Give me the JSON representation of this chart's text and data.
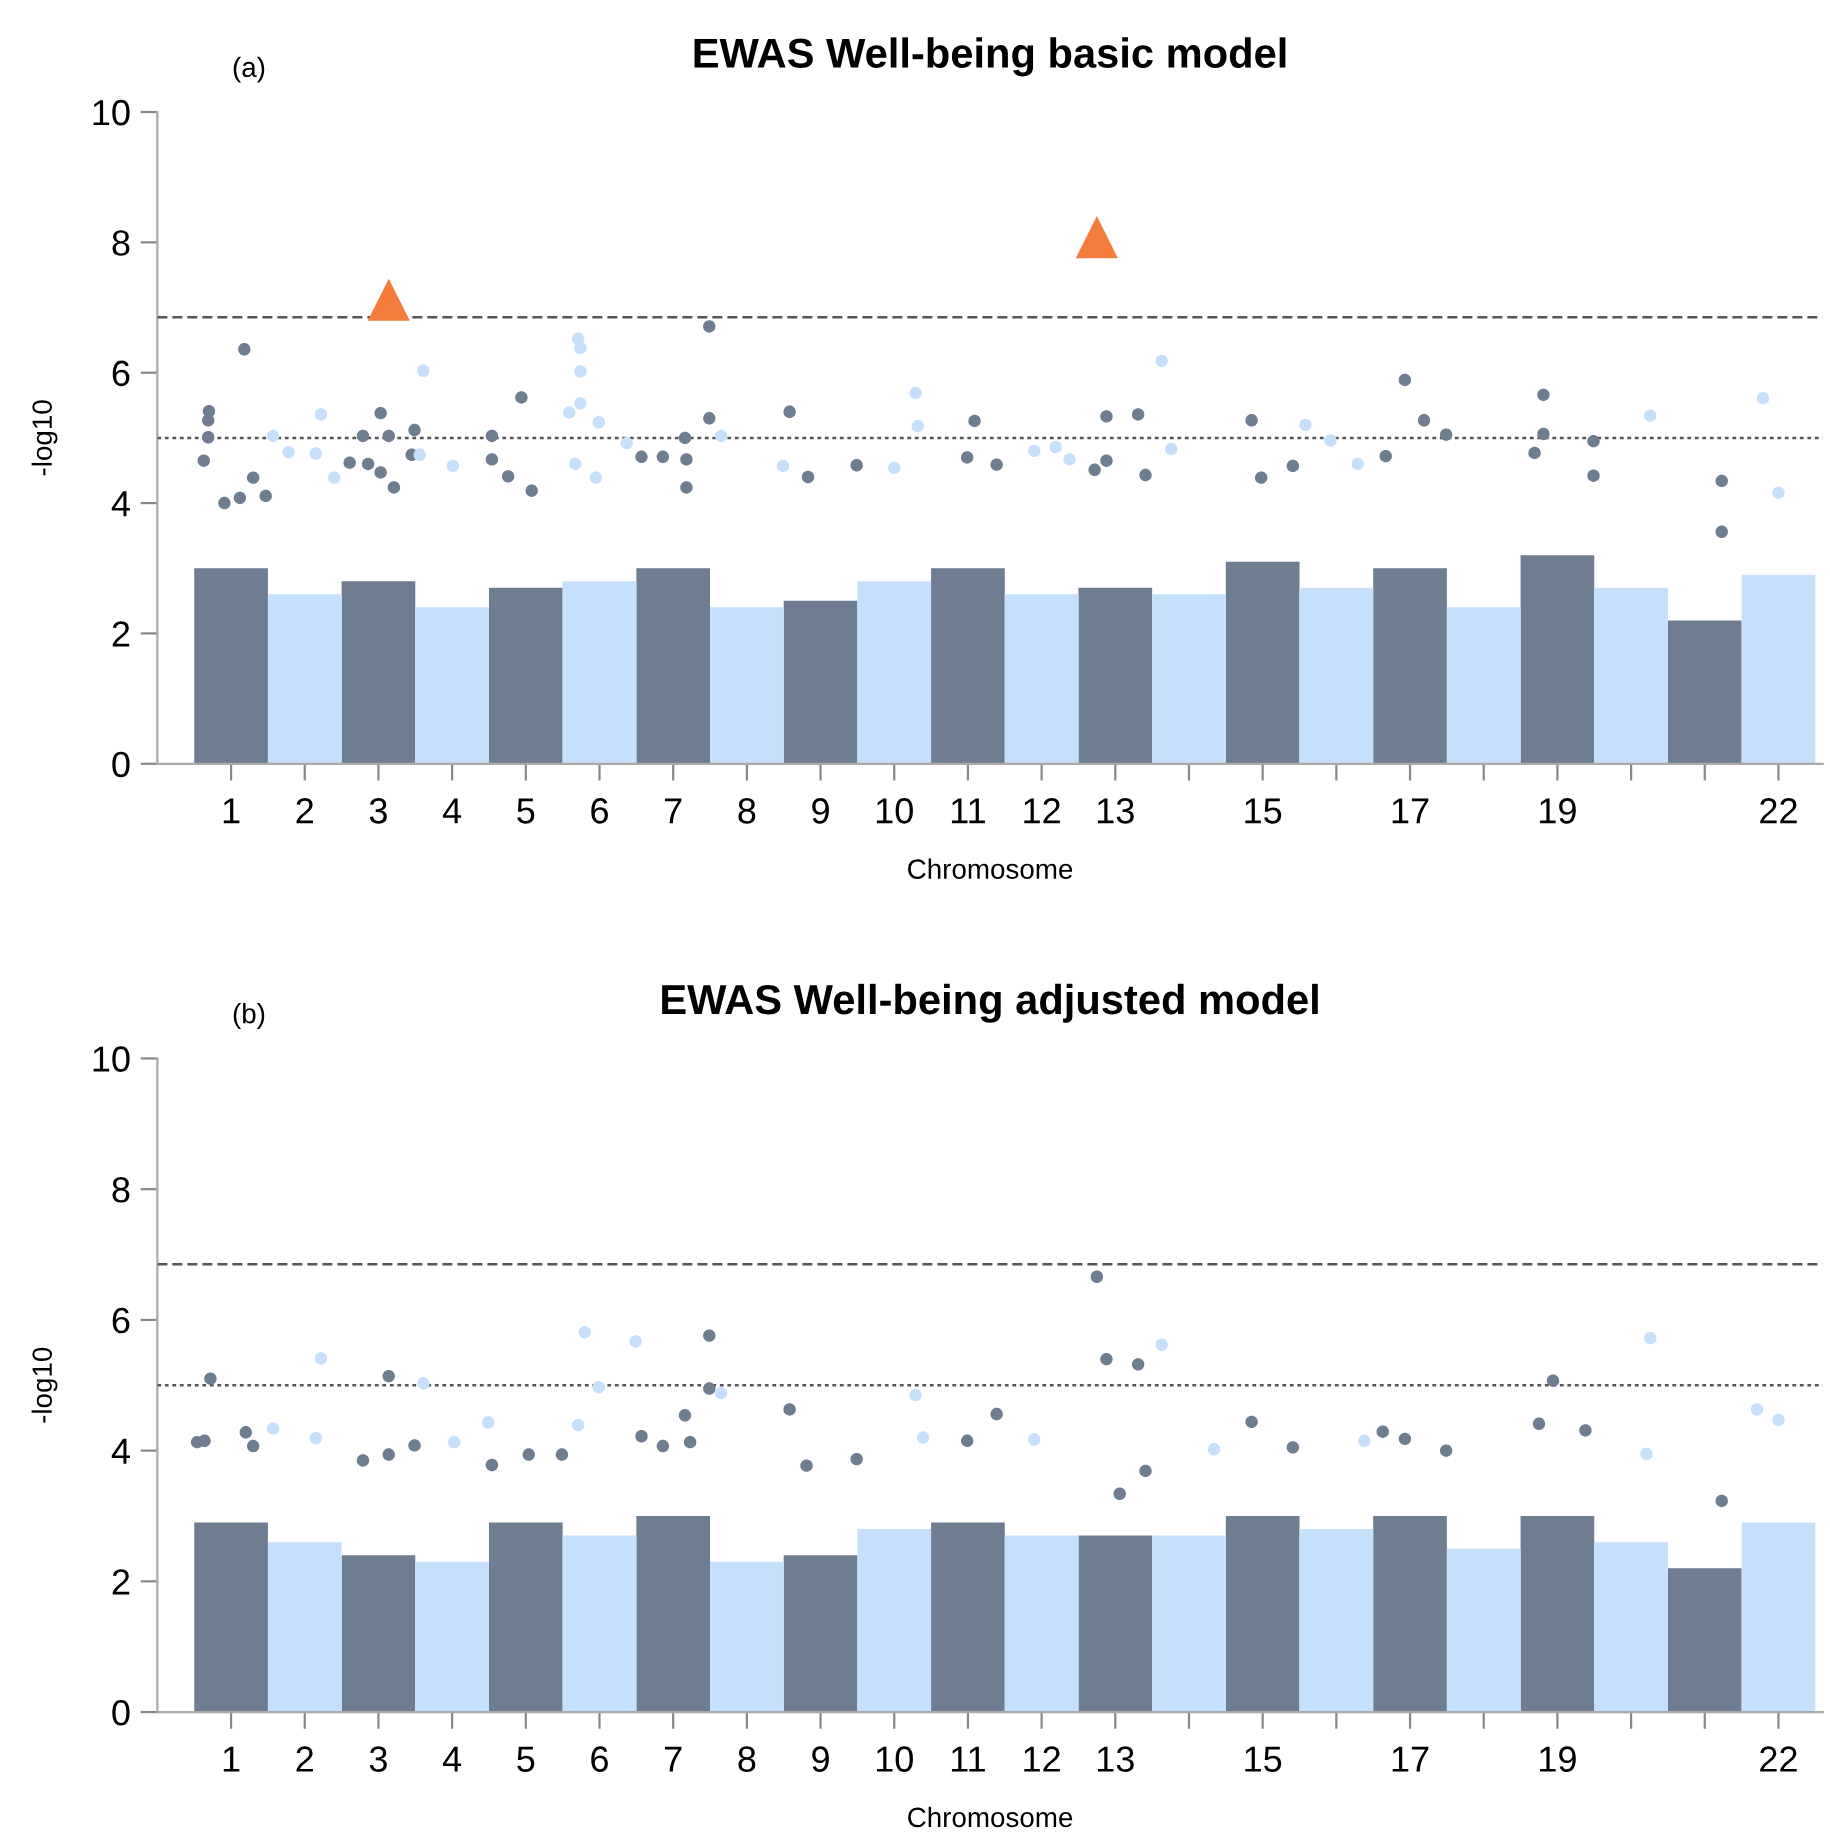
{
  "chart_data": [
    {
      "type": "scatter",
      "title": "EWAS Well-being basic model",
      "xlabel": "Chromosome",
      "ylabel": "-log10",
      "annotations": [
        "(a)"
      ],
      "xlim": [
        0,
        22.6
      ],
      "xticks": [
        1,
        2,
        3,
        4,
        5,
        6,
        7,
        8,
        9,
        10,
        11,
        12,
        13,
        {
          "value": 14,
          "label": null
        },
        15,
        {
          "value": 16,
          "label": null
        },
        17,
        {
          "value": 18,
          "label": null
        },
        19,
        {
          "value": 20,
          "label": null
        },
        {
          "value": 21,
          "label": null
        },
        22
      ],
      "ylim": [
        0,
        10
      ],
      "yticks": [
        0,
        2,
        4,
        6,
        8,
        10
      ],
      "grid": false,
      "legend": false,
      "ref_lines": [
        {
          "axis": "y",
          "value": 6.85,
          "label": null,
          "color": "#555555",
          "line_style": "dashed"
        },
        {
          "axis": "y",
          "value": 5.0,
          "label": null,
          "color": "#555555",
          "line_style": "dotted"
        }
      ],
      "series": [
        {
          "type": "area",
          "color": "#6e7d8f",
          "x": [
            0.5,
            1.5,
            2,
            2.5,
            3.5,
            4,
            4.5,
            5.5,
            6,
            6.5,
            7.5,
            8,
            8.5,
            9.5,
            10,
            10.5,
            11.5,
            12,
            12.5,
            13.5,
            14,
            14.5,
            15.5,
            16,
            16.5,
            17.5,
            18,
            18.5,
            19.5,
            20,
            20.5,
            21.5
          ],
          "values": [
            3.0,
            3.0,
            null,
            2.8,
            2.8,
            null,
            2.7,
            2.7,
            null,
            3.0,
            3.0,
            null,
            2.5,
            2.5,
            null,
            3.0,
            3.0,
            null,
            2.7,
            2.7,
            null,
            3.1,
            3.1,
            null,
            3.0,
            3.0,
            null,
            3.2,
            3.2,
            null,
            2.2,
            2.2
          ]
        },
        {
          "type": "area",
          "color": "#c6e0fb",
          "x": [
            1.5,
            2.5,
            3,
            3.5,
            4.5,
            5,
            5.5,
            6.5,
            7,
            7.5,
            8.5,
            9,
            9.5,
            10.5,
            11,
            11.5,
            12.5,
            13,
            13.5,
            14.5,
            15,
            15.5,
            16.5,
            17,
            17.5,
            18.5,
            19,
            19.5,
            20.5,
            21,
            21.5,
            22.5
          ],
          "values": [
            2.6,
            2.6,
            null,
            2.4,
            2.4,
            null,
            2.8,
            2.8,
            null,
            2.4,
            2.4,
            null,
            2.8,
            2.8,
            null,
            2.6,
            2.6,
            null,
            2.6,
            2.6,
            null,
            2.7,
            2.7,
            null,
            2.4,
            2.4,
            null,
            2.7,
            2.7,
            null,
            2.9,
            2.9
          ]
        },
        {
          "type": "scatter",
          "color": "#6e7d8f",
          "marker": "circle",
          "x": [
            0.7,
            0.69,
            0.69,
            0.63,
            1.18,
            0.91,
            1.3,
            1.12,
            1.47,
            3.03,
            2.79,
            3.14,
            3.49,
            2.86,
            3.03,
            3.21,
            3.45,
            2.61,
            4.94,
            4.54,
            4.54,
            4.76,
            5.08,
            6.57,
            6.86,
            7.49,
            7.49,
            7.16,
            7.18,
            7.18,
            8.58,
            8.83,
            9.49,
            10.99,
            11.09,
            11.39,
            12.88,
            13.31,
            12.72,
            12.88,
            13.41,
            14.85,
            14.98,
            15.41,
            16.93,
            17.19,
            17.49,
            16.67,
            18.81,
            18.81,
            18.69,
            19.49,
            19.49,
            21.23,
            21.23
          ],
          "values": [
            5.41,
            5.27,
            5.01,
            4.65,
            6.36,
            4.0,
            4.39,
            4.08,
            4.11,
            5.38,
            5.03,
            5.03,
            5.12,
            4.6,
            4.47,
            4.24,
            4.74,
            4.62,
            5.62,
            5.03,
            4.67,
            4.41,
            4.19,
            4.71,
            4.71,
            6.71,
            5.3,
            5.0,
            4.67,
            4.24,
            5.4,
            4.4,
            4.58,
            4.7,
            5.26,
            4.59,
            5.33,
            5.36,
            4.51,
            4.65,
            4.43,
            5.27,
            4.39,
            4.57,
            5.89,
            5.27,
            5.05,
            4.72,
            5.66,
            5.06,
            4.77,
            4.95,
            4.42,
            4.34,
            3.56
          ]
        },
        {
          "type": "scatter",
          "color": "#c6e0fb",
          "marker": "circle",
          "x": [
            1.57,
            2.22,
            1.78,
            2.15,
            2.4,
            3.61,
            3.56,
            4.01,
            5.71,
            5.74,
            5.74,
            5.74,
            5.59,
            5.99,
            6.37,
            5.67,
            5.95,
            7.65,
            8.49,
            10.29,
            10.32,
            10.0,
            11.9,
            12.19,
            12.38,
            13.63,
            13.76,
            15.58,
            15.92,
            20.26,
            21.79,
            22.0,
            16.29
          ],
          "values": [
            5.03,
            5.36,
            4.78,
            4.76,
            4.39,
            6.03,
            4.74,
            4.57,
            6.52,
            6.38,
            6.02,
            5.53,
            5.39,
            5.24,
            4.92,
            4.6,
            4.39,
            5.03,
            4.57,
            5.69,
            5.18,
            4.54,
            4.8,
            4.86,
            4.67,
            6.18,
            4.83,
            5.2,
            4.96,
            5.34,
            5.61,
            4.16,
            4.6
          ]
        },
        {
          "type": "scatter",
          "color": "#f47c3c",
          "marker": "triangle",
          "x": [
            3.14,
            12.75
          ],
          "values": [
            7.12,
            8.08
          ]
        }
      ]
    },
    {
      "type": "scatter",
      "title": "EWAS Well-being adjusted model",
      "xlabel": "Chromosome",
      "ylabel": "-log10",
      "annotations": [
        "(b)"
      ],
      "xlim": [
        0,
        22.6
      ],
      "xticks": [
        1,
        2,
        3,
        4,
        5,
        6,
        7,
        8,
        9,
        10,
        11,
        12,
        13,
        {
          "value": 14,
          "label": null
        },
        15,
        {
          "value": 16,
          "label": null
        },
        17,
        {
          "value": 18,
          "label": null
        },
        19,
        {
          "value": 20,
          "label": null
        },
        {
          "value": 21,
          "label": null
        },
        22
      ],
      "ylim": [
        0,
        10
      ],
      "yticks": [
        0,
        2,
        4,
        6,
        8,
        10
      ],
      "grid": false,
      "legend": false,
      "ref_lines": [
        {
          "axis": "y",
          "value": 6.85,
          "label": null,
          "color": "#555555",
          "line_style": "dashed"
        },
        {
          "axis": "y",
          "value": 5.0,
          "label": null,
          "color": "#555555",
          "line_style": "dotted"
        }
      ],
      "series": [
        {
          "type": "area",
          "color": "#6e7d8f",
          "x": [
            0.5,
            1.5,
            2,
            2.5,
            3.5,
            4,
            4.5,
            5.5,
            6,
            6.5,
            7.5,
            8,
            8.5,
            9.5,
            10,
            10.5,
            11.5,
            12,
            12.5,
            13.5,
            14,
            14.5,
            15.5,
            16,
            16.5,
            17.5,
            18,
            18.5,
            19.5,
            20,
            20.5,
            21.5
          ],
          "values": [
            2.9,
            2.9,
            null,
            2.4,
            2.4,
            null,
            2.9,
            2.9,
            null,
            3.0,
            3.0,
            null,
            2.4,
            2.4,
            null,
            2.9,
            2.9,
            null,
            2.7,
            2.7,
            null,
            3.0,
            3.0,
            null,
            3.0,
            3.0,
            null,
            3.0,
            3.0,
            null,
            2.2,
            2.2
          ]
        },
        {
          "type": "area",
          "color": "#c6e0fb",
          "x": [
            1.5,
            2.5,
            3,
            3.5,
            4.5,
            5,
            5.5,
            6.5,
            7,
            7.5,
            8.5,
            9,
            9.5,
            10.5,
            11,
            11.5,
            12.5,
            13,
            13.5,
            14.5,
            15,
            15.5,
            16.5,
            17,
            17.5,
            18.5,
            19,
            19.5,
            20.5,
            21,
            21.5,
            22.5
          ],
          "values": [
            2.6,
            2.6,
            null,
            2.3,
            2.3,
            null,
            2.7,
            2.7,
            null,
            2.3,
            2.3,
            null,
            2.8,
            2.8,
            null,
            2.7,
            2.7,
            null,
            2.7,
            2.7,
            null,
            2.8,
            2.8,
            null,
            2.5,
            2.5,
            null,
            2.6,
            2.6,
            null,
            2.9,
            2.9
          ]
        },
        {
          "type": "scatter",
          "color": "#6e7d8f",
          "marker": "circle",
          "x": [
            0.72,
            0.54,
            0.64,
            1.2,
            1.3,
            3.14,
            3.14,
            3.49,
            2.79,
            4.54,
            5.04,
            5.49,
            6.57,
            6.86,
            7.49,
            7.49,
            7.16,
            7.23,
            8.58,
            8.81,
            9.49,
            11.39,
            10.99,
            12.75,
            12.88,
            13.31,
            13.06,
            13.41,
            14.85,
            15.41,
            16.63,
            16.93,
            17.49,
            18.94,
            18.75,
            19.38,
            21.23
          ],
          "values": [
            5.1,
            4.13,
            4.15,
            4.28,
            4.07,
            5.14,
            3.94,
            4.08,
            3.85,
            3.78,
            3.94,
            3.94,
            4.22,
            4.07,
            5.76,
            4.95,
            4.54,
            4.13,
            4.63,
            3.77,
            3.87,
            4.56,
            4.15,
            6.66,
            5.4,
            5.32,
            3.34,
            3.69,
            4.44,
            4.05,
            4.29,
            4.18,
            4.0,
            5.07,
            4.41,
            4.31,
            3.23
          ]
        },
        {
          "type": "scatter",
          "color": "#c6e0fb",
          "marker": "circle",
          "x": [
            2.22,
            3.61,
            5.8,
            5.99,
            6.49,
            4.49,
            1.57,
            2.15,
            4.03,
            5.71,
            7.65,
            10.29,
            10.39,
            11.9,
            13.63,
            14.34,
            16.38,
            20.26,
            21.71,
            22.0,
            20.21
          ],
          "values": [
            5.41,
            5.03,
            5.81,
            4.97,
            5.67,
            4.43,
            4.34,
            4.19,
            4.13,
            4.39,
            4.88,
            4.85,
            4.2,
            4.17,
            5.62,
            4.02,
            4.15,
            5.72,
            4.63,
            4.47,
            3.95
          ]
        }
      ]
    }
  ]
}
